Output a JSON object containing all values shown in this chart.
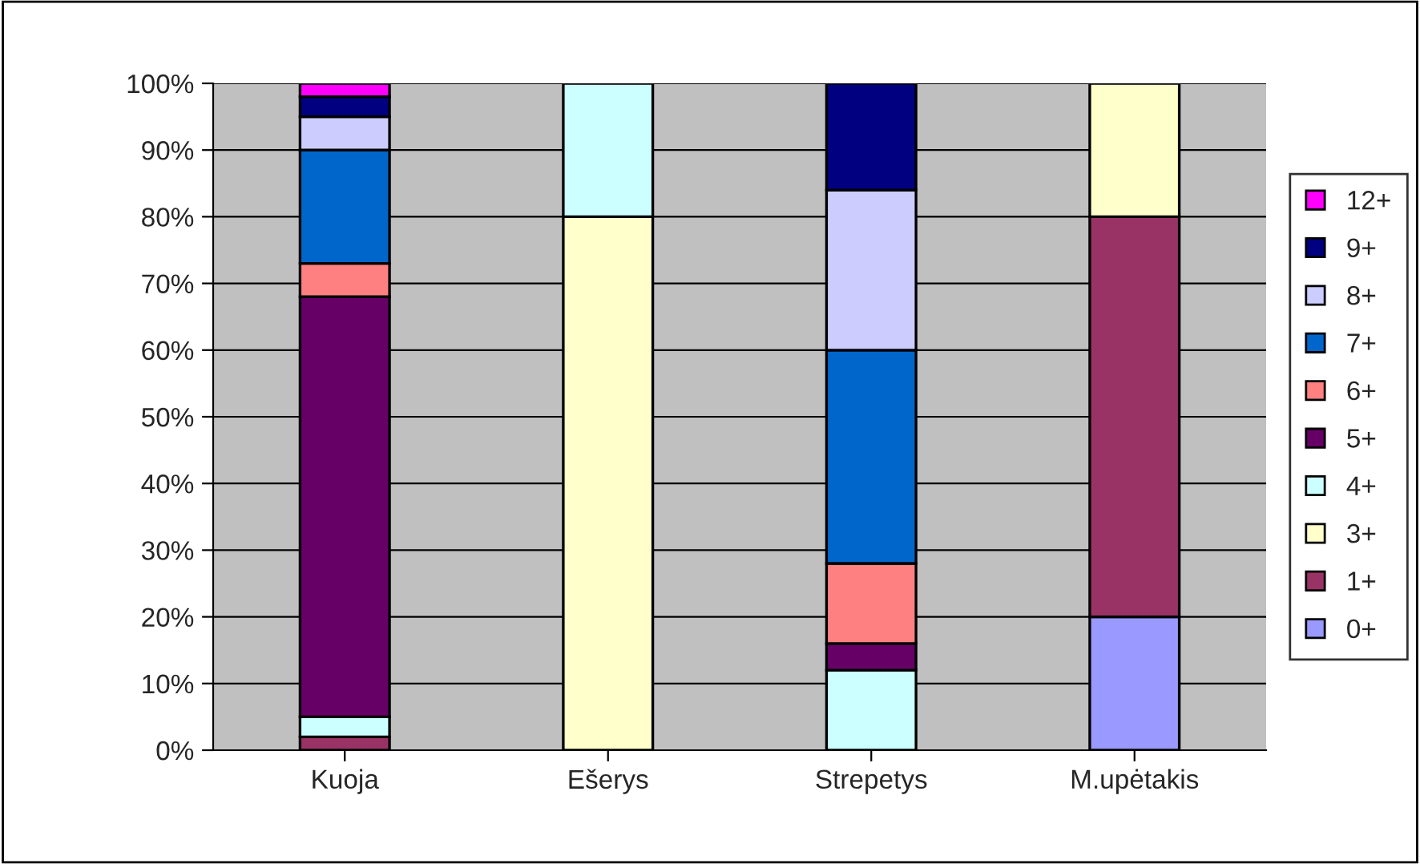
{
  "chart_data": {
    "type": "bar",
    "stacked": true,
    "categories": [
      "Kuoja",
      "Ešerys",
      "Strepetys",
      "M.upėtakis"
    ],
    "series": [
      {
        "name": "0+",
        "color": "#9999ff",
        "values": [
          null,
          null,
          null,
          20
        ]
      },
      {
        "name": "1+",
        "color": "#993366",
        "values": [
          2,
          null,
          null,
          60
        ]
      },
      {
        "name": "3+",
        "color": "#ffffcc",
        "values": [
          null,
          80,
          null,
          20
        ]
      },
      {
        "name": "4+",
        "color": "#ccffff",
        "values": [
          3,
          20,
          12,
          null
        ]
      },
      {
        "name": "5+",
        "color": "#660066",
        "values": [
          63,
          null,
          4,
          null
        ]
      },
      {
        "name": "6+",
        "color": "#ff8080",
        "values": [
          5,
          null,
          12,
          null
        ]
      },
      {
        "name": "7+",
        "color": "#0066cc",
        "values": [
          17,
          null,
          32,
          null
        ]
      },
      {
        "name": "8+",
        "color": "#ccccff",
        "values": [
          5,
          null,
          24,
          null
        ]
      },
      {
        "name": "9+",
        "color": "#000080",
        "values": [
          3,
          null,
          16,
          null
        ]
      },
      {
        "name": "12+",
        "color": "#ff00ff",
        "values": [
          2,
          null,
          null,
          null
        ]
      }
    ],
    "ylim": [
      0,
      100
    ],
    "yticks": [
      {
        "value": 0,
        "label": "0%"
      },
      {
        "value": 10,
        "label": "10%"
      },
      {
        "value": 20,
        "label": "20%"
      },
      {
        "value": 30,
        "label": "30%"
      },
      {
        "value": 40,
        "label": "40%"
      },
      {
        "value": 50,
        "label": "50%"
      },
      {
        "value": 60,
        "label": "60%"
      },
      {
        "value": 70,
        "label": "70%"
      },
      {
        "value": 80,
        "label": "80%"
      },
      {
        "value": 90,
        "label": "90%"
      },
      {
        "value": 100,
        "label": "100%"
      }
    ],
    "grid": "y",
    "legend": "right"
  }
}
